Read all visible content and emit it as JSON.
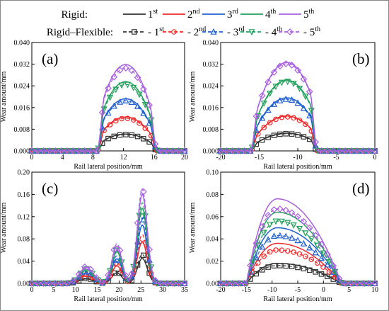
{
  "chart_data": {
    "type": "line",
    "legend": {
      "position": "top",
      "groups": [
        {
          "label": "Rigid:",
          "style": "solid"
        },
        {
          "label": "Rigid–Flexible:",
          "style": "dashed"
        }
      ],
      "series": [
        "1st",
        "2nd",
        "3rd",
        "4th",
        "5th"
      ],
      "series_text": [
        {
          "base": "1",
          "sup": "st"
        },
        {
          "base": "2",
          "sup": "nd"
        },
        {
          "base": "3",
          "sup": "rd"
        },
        {
          "base": "4",
          "sup": "th"
        },
        {
          "base": "5",
          "sup": "th"
        }
      ],
      "colors": [
        "#333333",
        "#ee2a2a",
        "#2060d0",
        "#22a05a",
        "#a860e0"
      ],
      "markers": [
        "square",
        "circle",
        "triangle-up",
        "triangle-down",
        "diamond"
      ]
    },
    "panels": [
      {
        "id": "a",
        "label": "(a)",
        "xlabel": "Rail lateral position/mm",
        "ylabel": "Wear amount/mm",
        "xlim": [
          0,
          20
        ],
        "ylim": [
          0,
          0.04
        ],
        "xticks": [
          0,
          4,
          8,
          12,
          16,
          20
        ],
        "yticks": [
          "0.000",
          "0.008",
          "0.016",
          "0.024",
          "0.032",
          "0.040"
        ],
        "shape": "plateau",
        "center": 12.5,
        "halfwidth": 3.0,
        "ramp": 1.0,
        "skew": 0.12,
        "rigid_peaks": [
          0.0062,
          0.0125,
          0.0192,
          0.0255,
          0.0318
        ],
        "flex_peaks": [
          0.006,
          0.012,
          0.0185,
          0.0245,
          0.0305
        ]
      },
      {
        "id": "b",
        "label": "(b)",
        "xlabel": "Rail lateral position/mm",
        "ylabel": "Wear amount/mm",
        "xlim": [
          -20,
          0
        ],
        "ylim": [
          0,
          0.04
        ],
        "xticks": [
          -20,
          -15,
          -10,
          -5,
          0
        ],
        "yticks": [
          "0.000",
          "0.008",
          "0.016",
          "0.024",
          "0.032",
          "0.040"
        ],
        "shape": "plateau",
        "center": -11.8,
        "halfwidth": 3.4,
        "ramp": 1.0,
        "skew": -0.18,
        "rigid_peaks": [
          0.0065,
          0.0128,
          0.0195,
          0.026,
          0.0325
        ],
        "flex_peaks": [
          0.0063,
          0.0125,
          0.019,
          0.0255,
          0.032
        ]
      },
      {
        "id": "c",
        "label": "(c)",
        "xlabel": "Rail lateral position/mm",
        "ylabel": "Wear amount/mm",
        "xlim": [
          0,
          35
        ],
        "ylim": [
          0,
          0.2
        ],
        "xticks": [
          0,
          5,
          10,
          15,
          20,
          25,
          30,
          35
        ],
        "yticks": [
          "0.00",
          "0.04",
          "0.08",
          "0.12",
          "0.16",
          "0.20"
        ],
        "shape": "multipeak",
        "bumps": [
          [
            12.5,
            2.2,
            0.18
          ],
          [
            19.5,
            1.6,
            0.42
          ],
          [
            25.3,
            1.6,
            1.0
          ]
        ],
        "rigid_peaks": [
          0.045,
          0.075,
          0.105,
          0.135,
          0.16
        ],
        "flex_peaks": [
          0.052,
          0.088,
          0.118,
          0.145,
          0.17
        ]
      },
      {
        "id": "d",
        "label": "(d)",
        "xlabel": "Rail lateral position/mm",
        "ylabel": "Wear amount/mm",
        "xlim": [
          -20,
          10
        ],
        "ylim": [
          0,
          0.1
        ],
        "xticks": [
          -20,
          -15,
          -10,
          -5,
          0,
          5,
          10
        ],
        "yticks": [
          "0.00",
          "0.02",
          "0.04",
          "0.06",
          "0.08",
          "0.10"
        ],
        "shape": "dome",
        "x0": -15,
        "x1": 3.5,
        "mode": -9.0,
        "rigid_peaks": [
          0.018,
          0.036,
          0.05,
          0.064,
          0.076
        ],
        "flex_peaks": [
          0.016,
          0.03,
          0.043,
          0.056,
          0.067
        ]
      }
    ]
  }
}
